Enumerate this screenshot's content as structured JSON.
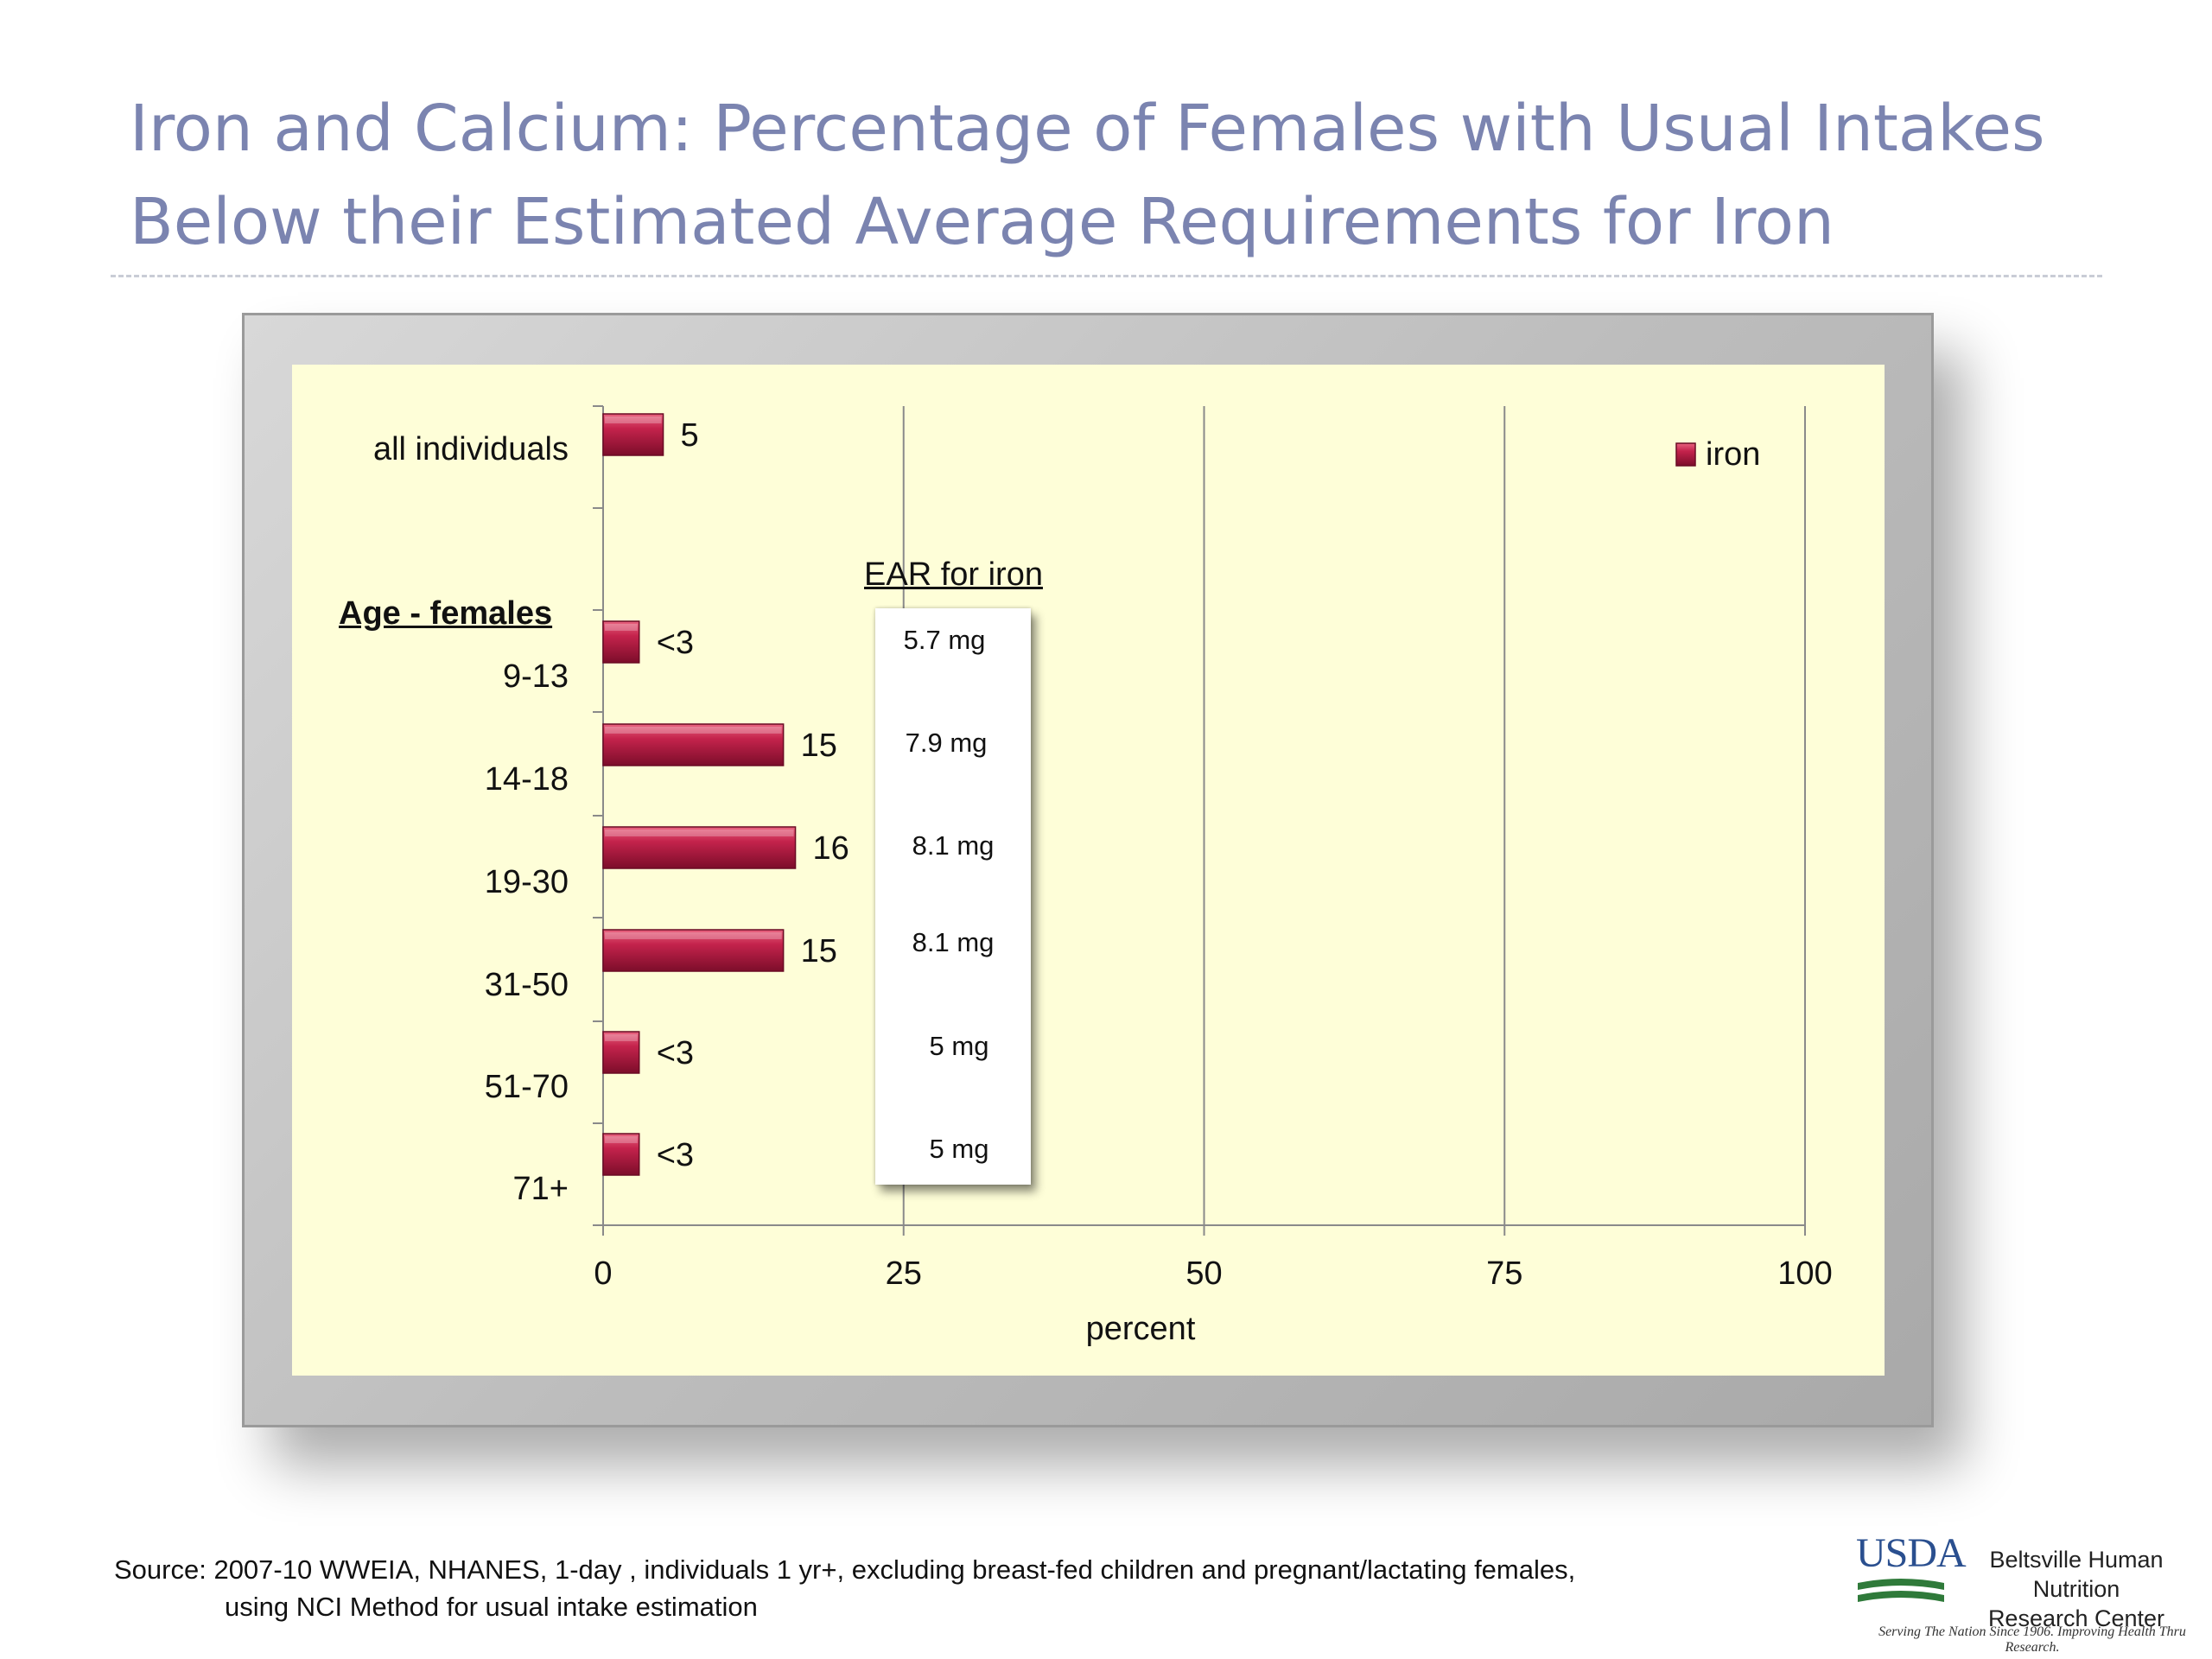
{
  "title_line1": "Iron and Calcium:  Percentage of Females with Usual Intakes",
  "title_line2": "Below their Estimated Average Requirements for Iron",
  "chart_data": {
    "type": "bar",
    "orientation": "horizontal",
    "categories": [
      "all individuals",
      "9-13",
      "14-18",
      "19-30",
      "31-50",
      "51-70",
      "71+"
    ],
    "series": [
      {
        "name": "iron",
        "values": [
          5,
          3,
          15,
          16,
          15,
          3,
          3
        ],
        "labels": [
          "5",
          "<3",
          "15",
          "16",
          "15",
          "<3",
          "<3"
        ]
      }
    ],
    "xlabel": "percent",
    "category_group_label": "Age - females",
    "xlim": [
      0,
      100
    ],
    "xticks": [
      "0",
      "25",
      "50",
      "75",
      "100"
    ],
    "grid": "vertical",
    "legend": "top-right",
    "bar_color": "#b0173f"
  },
  "ear": {
    "title": "EAR for iron",
    "values": [
      "5.7 mg",
      "7.9 mg",
      "8.1 mg",
      "8.1 mg",
      "5 mg",
      "5 mg"
    ]
  },
  "source_line1": "Source:  2007-10 WWEIA, NHANES, 1-day , individuals 1 yr+, excluding breast-fed children and pregnant/lactating females,",
  "source_line2": "using NCI Method for usual intake estimation",
  "logo": {
    "agency": "USDA",
    "name_line1": "Beltsville Human Nutrition",
    "name_line2": "Research Center",
    "tagline": "Serving The Nation Since 1906. Improving Health Thru Research."
  }
}
